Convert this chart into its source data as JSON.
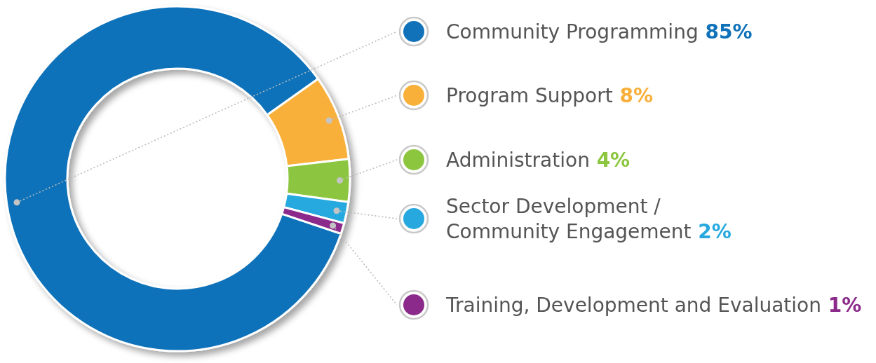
{
  "chart_data": {
    "type": "donut",
    "categories": [
      "Community Programming",
      "Program Support",
      "Administration",
      "Sector Development / Community Engagement",
      "Training, Development and Evaluation"
    ],
    "values": [
      85,
      8,
      4,
      2,
      1
    ],
    "colors": [
      "#1172b9",
      "#f9b03b",
      "#8cc63f",
      "#27a9df",
      "#8b2a8b"
    ],
    "value_labels": [
      "85%",
      "8%",
      "4%",
      "2%",
      "1%"
    ],
    "legend": "right"
  }
}
